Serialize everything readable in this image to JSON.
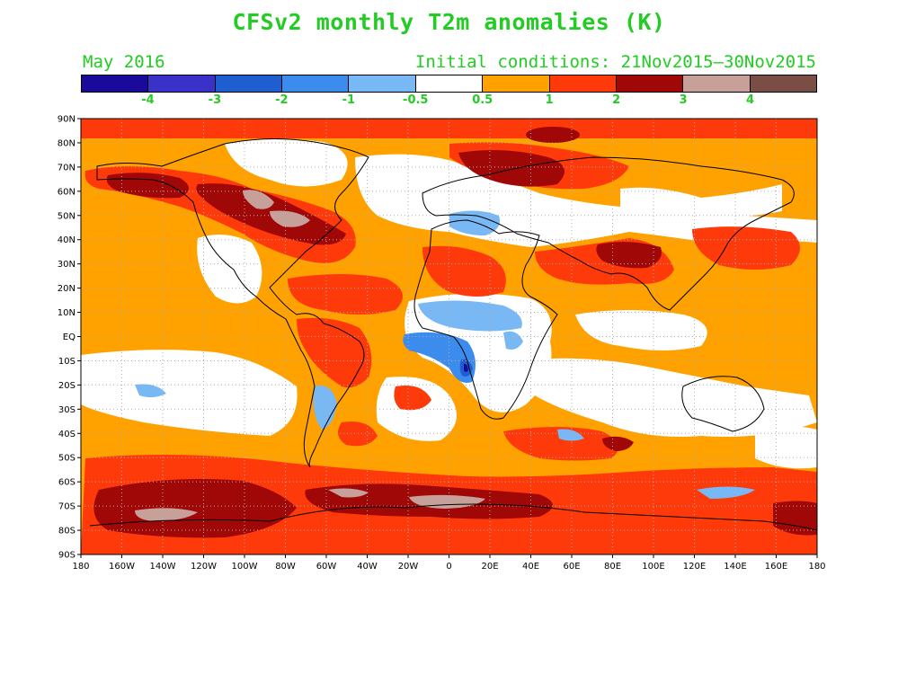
{
  "title": "CFSv2 monthly T2m anomalies (K)",
  "subtitle_left": "May 2016",
  "subtitle_right": "Initial conditions: 21Nov2015–30Nov2015",
  "text_color": "#22cc22",
  "colorbar": {
    "colors": [
      "#1a0a9a",
      "#3a32c8",
      "#1f5ed0",
      "#3c8cee",
      "#78b8f4",
      "#ffffff",
      "#ffa200",
      "#ff3a0a",
      "#a00808",
      "#c8a09a",
      "#7a4e44"
    ],
    "labels": [
      "-4",
      "-3",
      "-2",
      "-1",
      "-0.5",
      "0.5",
      "1",
      "2",
      "3",
      "4"
    ]
  },
  "map": {
    "lat_labels": [
      "90N",
      "80N",
      "70N",
      "60N",
      "50N",
      "40N",
      "30N",
      "20N",
      "10N",
      "EQ",
      "10S",
      "20S",
      "30S",
      "40S",
      "50S",
      "60S",
      "70S",
      "80S",
      "90S"
    ],
    "lon_labels": [
      "180",
      "160W",
      "140W",
      "120W",
      "100W",
      "80W",
      "60W",
      "40W",
      "20W",
      "0",
      "20E",
      "40E",
      "60E",
      "80E",
      "100E",
      "120E",
      "140E",
      "160E",
      "180"
    ]
  }
}
